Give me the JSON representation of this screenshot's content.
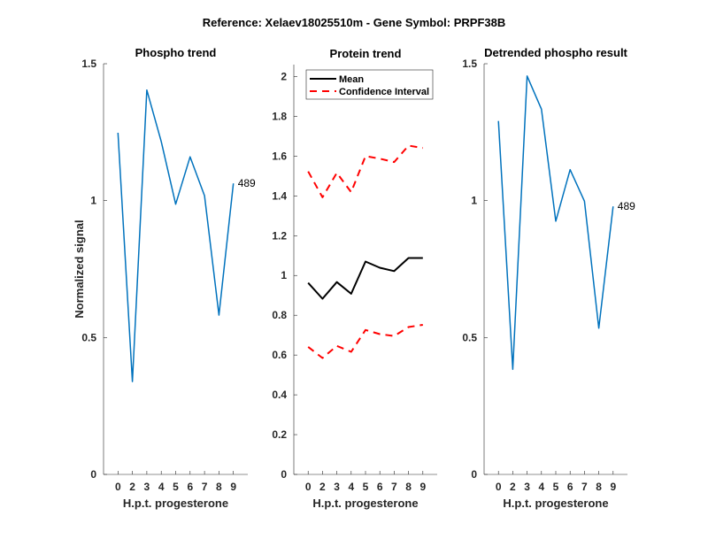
{
  "suptitle": "Reference:  Xelaev18025510m - Gene Symbol:  PRPF38B",
  "chart_data": [
    {
      "type": "line",
      "title": "Phospho trend",
      "xlabel": "H.p.t. progesterone",
      "ylabel": "Normalized signal",
      "categories": [
        "0",
        "2",
        "3",
        "4",
        "5",
        "6",
        "7",
        "8",
        "9"
      ],
      "ylim": [
        0,
        1.5
      ],
      "yticks": [
        "0",
        "0.5",
        "1",
        "1.5"
      ],
      "yticks_values": [
        0,
        0.5,
        1,
        1.5
      ],
      "series": [
        {
          "name": "489",
          "color": "#0072BD",
          "values": [
            1.248,
            0.339,
            1.404,
            1.216,
            0.987,
            1.16,
            1.018,
            0.582,
            1.063
          ]
        }
      ],
      "annotation": "489"
    },
    {
      "type": "line",
      "title": "Protein trend",
      "xlabel": "H.p.t. progesterone",
      "ylabel": "",
      "categories": [
        "0",
        "2",
        "3",
        "4",
        "5",
        "6",
        "7",
        "8",
        "9"
      ],
      "ylim": [
        0,
        2.06
      ],
      "yticks": [
        "0",
        "0.2",
        "0.4",
        "0.6",
        "0.8",
        "1",
        "1.2",
        "1.4",
        "1.6",
        "1.8",
        "2"
      ],
      "yticks_values": [
        0,
        0.2,
        0.4,
        0.6,
        0.8,
        1,
        1.2,
        1.4,
        1.6,
        1.8,
        2
      ],
      "legend": {
        "placement": "top-left",
        "entries": [
          "Mean",
          "Confidence Interval"
        ]
      },
      "series": [
        {
          "name": "Mean",
          "color": "#000000",
          "style": "solid",
          "values": [
            0.963,
            0.883,
            0.967,
            0.908,
            1.07,
            1.039,
            1.022,
            1.088,
            1.088
          ]
        },
        {
          "name": "Confidence Interval",
          "color": "#FF0000",
          "style": "dashed",
          "values": [
            1.523,
            1.393,
            1.516,
            1.419,
            1.6,
            1.587,
            1.57,
            1.653,
            1.641
          ]
        },
        {
          "name": "Confidence Interval lower",
          "color": "#FF0000",
          "style": "dashed",
          "values": [
            0.641,
            0.585,
            0.646,
            0.616,
            0.726,
            0.705,
            0.696,
            0.741,
            0.752
          ]
        }
      ]
    },
    {
      "type": "line",
      "title": "Detrended phospho result",
      "xlabel": "H.p.t. progesterone",
      "ylabel": "",
      "categories": [
        "0",
        "2",
        "3",
        "4",
        "5",
        "6",
        "7",
        "8",
        "9"
      ],
      "ylim": [
        0,
        1.5
      ],
      "yticks": [
        "0",
        "0.5",
        "1",
        "1.5"
      ],
      "yticks_values": [
        0,
        0.5,
        1,
        1.5
      ],
      "series": [
        {
          "name": "489",
          "color": "#0072BD",
          "values": [
            1.291,
            0.384,
            1.455,
            1.334,
            0.925,
            1.113,
            0.998,
            0.534,
            0.979
          ]
        }
      ],
      "annotation": "489"
    }
  ]
}
